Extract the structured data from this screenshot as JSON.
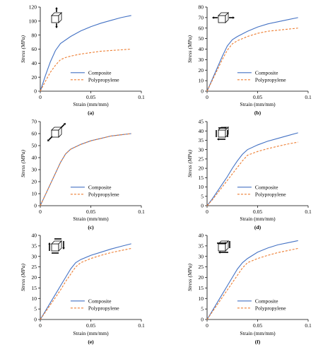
{
  "chart_data": [
    {
      "type": "line",
      "panel_label": "(a)",
      "icon": "cube-arrow-vertical-icon",
      "xlabel": "Strain (mm/mm)",
      "ylabel": "Stress (MPa)",
      "xlim": [
        0,
        0.1
      ],
      "ylim": [
        0,
        120
      ],
      "xticks": [
        "0",
        "0.05",
        "0.1"
      ],
      "yticks": [
        "0",
        "20",
        "40",
        "60",
        "80",
        "100",
        "120"
      ],
      "legend_position": "bottom-right",
      "grid": false,
      "series": [
        {
          "name": "Composite",
          "color": "#4472C4",
          "dash": "solid",
          "x": [
            0,
            0.005,
            0.01,
            0.015,
            0.02,
            0.03,
            0.04,
            0.05,
            0.06,
            0.07,
            0.08,
            0.09
          ],
          "y": [
            0,
            22,
            42,
            58,
            68,
            78,
            86,
            92,
            97,
            101,
            105,
            108
          ]
        },
        {
          "name": "Polypropylene",
          "color": "#ED7D31",
          "dash": "dashed",
          "x": [
            0,
            0.005,
            0.01,
            0.015,
            0.02,
            0.025,
            0.03,
            0.04,
            0.05,
            0.06,
            0.07,
            0.08,
            0.09
          ],
          "y": [
            0,
            14,
            27,
            37,
            45,
            48,
            50,
            53,
            55,
            57,
            58,
            59,
            60
          ]
        }
      ]
    },
    {
      "type": "line",
      "panel_label": "(b)",
      "icon": "cube-arrow-horizontal-icon",
      "xlabel": "Strain (mm/mm)",
      "ylabel": "Stress (MPa)",
      "xlim": [
        0,
        0.1
      ],
      "ylim": [
        0,
        80
      ],
      "xticks": [
        "0",
        "0.05",
        "0.1"
      ],
      "yticks": [
        "0",
        "10",
        "20",
        "30",
        "40",
        "50",
        "60",
        "70",
        "80"
      ],
      "legend_position": "bottom-right",
      "grid": false,
      "series": [
        {
          "name": "Composite",
          "color": "#4472C4",
          "dash": "solid",
          "x": [
            0,
            0.005,
            0.01,
            0.015,
            0.02,
            0.025,
            0.03,
            0.04,
            0.05,
            0.06,
            0.07,
            0.08,
            0.09
          ],
          "y": [
            0,
            11,
            22,
            33,
            43,
            49,
            52,
            57,
            61,
            64,
            66,
            68,
            70
          ]
        },
        {
          "name": "Polypropylene",
          "color": "#ED7D31",
          "dash": "dashed",
          "x": [
            0,
            0.005,
            0.01,
            0.015,
            0.02,
            0.025,
            0.03,
            0.04,
            0.05,
            0.06,
            0.07,
            0.08,
            0.09
          ],
          "y": [
            0,
            10,
            20,
            30,
            39,
            45,
            48,
            52,
            55,
            57,
            58,
            59,
            60
          ]
        }
      ]
    },
    {
      "type": "line",
      "panel_label": "(c)",
      "icon": "cube-arrow-diagonal-icon",
      "xlabel": "Strain (mm/mm)",
      "ylabel": "Stress (MPa)",
      "xlim": [
        0,
        0.1
      ],
      "ylim": [
        0,
        70
      ],
      "xticks": [
        "0",
        "0.05",
        "0.1"
      ],
      "yticks": [
        "0",
        "10",
        "20",
        "30",
        "40",
        "50",
        "60",
        "70"
      ],
      "legend_position": "bottom-right",
      "grid": false,
      "series": [
        {
          "name": "Composite",
          "color": "#4472C4",
          "dash": "solid",
          "x": [
            0,
            0.005,
            0.01,
            0.015,
            0.02,
            0.025,
            0.03,
            0.04,
            0.05,
            0.06,
            0.07,
            0.08,
            0.09
          ],
          "y": [
            0,
            9,
            18,
            27,
            36,
            43,
            47,
            51,
            54,
            56,
            58,
            59,
            60
          ]
        },
        {
          "name": "Polypropylene",
          "color": "#ED7D31",
          "dash": "dashed",
          "x": [
            0,
            0.005,
            0.01,
            0.015,
            0.02,
            0.025,
            0.03,
            0.04,
            0.05,
            0.06,
            0.07,
            0.08,
            0.09
          ],
          "y": [
            0,
            9,
            18,
            27,
            36,
            43,
            47,
            51,
            54,
            56,
            58,
            59,
            60
          ]
        }
      ]
    },
    {
      "type": "line",
      "panel_label": "(d)",
      "icon": "cube-shear-front-icon",
      "xlabel": "Strain (mm/mm)",
      "ylabel": "Stress (MPa)",
      "xlim": [
        0,
        0.1
      ],
      "ylim": [
        0,
        45
      ],
      "xticks": [
        "0",
        "0.05",
        "0.1"
      ],
      "yticks": [
        "0",
        "5",
        "10",
        "15",
        "20",
        "25",
        "30",
        "35",
        "40",
        "45"
      ],
      "legend_position": "bottom-right",
      "grid": false,
      "series": [
        {
          "name": "Composite",
          "color": "#4472C4",
          "dash": "solid",
          "x": [
            0,
            0.005,
            0.01,
            0.015,
            0.02,
            0.025,
            0.03,
            0.035,
            0.04,
            0.05,
            0.06,
            0.07,
            0.08,
            0.09
          ],
          "y": [
            0,
            3.5,
            7.5,
            11.5,
            15.5,
            20,
            24,
            27.5,
            30,
            32.5,
            34.5,
            36,
            37.5,
            39
          ]
        },
        {
          "name": "Polypropylene",
          "color": "#ED7D31",
          "dash": "dashed",
          "x": [
            0,
            0.005,
            0.01,
            0.015,
            0.02,
            0.025,
            0.03,
            0.035,
            0.04,
            0.05,
            0.06,
            0.07,
            0.08,
            0.09
          ],
          "y": [
            0,
            3,
            6.5,
            10,
            13.5,
            17,
            20.5,
            24,
            27,
            29,
            30.5,
            31.8,
            33,
            34
          ]
        }
      ]
    },
    {
      "type": "line",
      "panel_label": "(e)",
      "icon": "cube-shear-side-icon",
      "xlabel": "Strain (mm/mm)",
      "ylabel": "Stress (MPa)",
      "xlim": [
        0,
        0.1
      ],
      "ylim": [
        0,
        40
      ],
      "xticks": [
        "0",
        "0.05",
        "0.1"
      ],
      "yticks": [
        "0",
        "5",
        "10",
        "15",
        "20",
        "25",
        "30",
        "35",
        "40"
      ],
      "legend_position": "bottom-right",
      "grid": false,
      "series": [
        {
          "name": "Composite",
          "color": "#4472C4",
          "dash": "solid",
          "x": [
            0,
            0.005,
            0.01,
            0.015,
            0.02,
            0.025,
            0.03,
            0.035,
            0.04,
            0.05,
            0.06,
            0.07,
            0.08,
            0.09
          ],
          "y": [
            0,
            4,
            8,
            12,
            16,
            20,
            24,
            27,
            28.5,
            30.5,
            32,
            33.5,
            34.8,
            36
          ]
        },
        {
          "name": "Polypropylene",
          "color": "#ED7D31",
          "dash": "dashed",
          "x": [
            0,
            0.005,
            0.01,
            0.015,
            0.02,
            0.025,
            0.03,
            0.035,
            0.04,
            0.05,
            0.06,
            0.07,
            0.08,
            0.09
          ],
          "y": [
            0,
            3.5,
            7,
            10.5,
            14,
            18,
            21.5,
            25,
            27,
            29,
            30.5,
            31.8,
            32.8,
            33.8
          ]
        }
      ]
    },
    {
      "type": "line",
      "panel_label": "(f)",
      "icon": "cube-shear-top-icon",
      "xlabel": "Strain (mm/mm)",
      "ylabel": "Stress (MPa)",
      "xlim": [
        0,
        0.1
      ],
      "ylim": [
        0,
        40
      ],
      "xticks": [
        "0",
        "0.05",
        "0.1"
      ],
      "yticks": [
        "0",
        "5",
        "10",
        "15",
        "20",
        "25",
        "30",
        "35",
        "40"
      ],
      "legend_position": "bottom-right",
      "grid": false,
      "series": [
        {
          "name": "Composite",
          "color": "#4472C4",
          "dash": "solid",
          "x": [
            0,
            0.005,
            0.01,
            0.015,
            0.02,
            0.025,
            0.03,
            0.035,
            0.04,
            0.045,
            0.05,
            0.06,
            0.07,
            0.08,
            0.09
          ],
          "y": [
            0,
            4,
            8,
            12,
            16,
            20,
            24,
            27,
            29,
            30.5,
            32,
            34,
            35.5,
            36.5,
            37.5
          ]
        },
        {
          "name": "Polypropylene",
          "color": "#ED7D31",
          "dash": "dashed",
          "x": [
            0,
            0.005,
            0.01,
            0.015,
            0.02,
            0.025,
            0.03,
            0.035,
            0.04,
            0.05,
            0.06,
            0.07,
            0.08,
            0.09
          ],
          "y": [
            0,
            3.5,
            7,
            10.5,
            14,
            17.5,
            21,
            24.5,
            27,
            29,
            30.5,
            31.8,
            32.8,
            33.8
          ]
        }
      ]
    }
  ]
}
